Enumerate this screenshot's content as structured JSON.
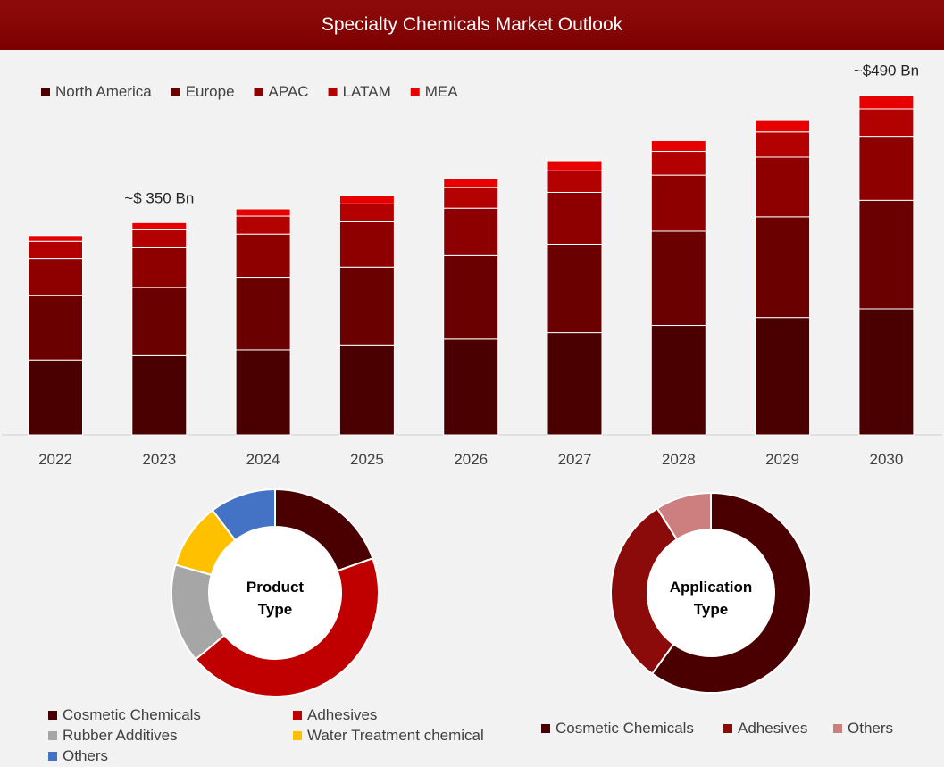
{
  "page": {
    "title": "Specialty Chemicals Market Outlook"
  },
  "chart_data": [
    {
      "type": "bar",
      "stacked": true,
      "categories": [
        "2022",
        "2023",
        "2024",
        "2025",
        "2026",
        "2027",
        "2028",
        "2029",
        "2030"
      ],
      "series": [
        {
          "name": "North America",
          "color": "#4a0000",
          "values": [
            104,
            110,
            118,
            125,
            133,
            142,
            152,
            163,
            175
          ]
        },
        {
          "name": "Europe",
          "color": "#6b0000",
          "values": [
            90,
            95,
            101,
            108,
            116,
            123,
            131,
            140,
            151
          ]
        },
        {
          "name": "APAC",
          "color": "#8e0000",
          "values": [
            51,
            55,
            60,
            63,
            66,
            72,
            78,
            83,
            89
          ]
        },
        {
          "name": "LATAM",
          "color": "#b30000",
          "values": [
            24,
            25,
            25,
            25,
            29,
            30,
            33,
            35,
            38
          ]
        },
        {
          "name": "MEA",
          "color": "#e60000",
          "values": [
            8,
            10,
            10,
            12,
            12,
            14,
            15,
            17,
            19
          ]
        }
      ],
      "annotations": [
        {
          "category": "2023",
          "text": "~$ 350 Bn"
        },
        {
          "category": "2030",
          "text": "~$490 Bn"
        }
      ],
      "ylim": [
        0,
        520
      ],
      "legend": "top-left",
      "grid": false
    },
    {
      "type": "pie",
      "donut": true,
      "center_label": [
        "Product",
        "Type"
      ],
      "labels": [
        "Cosmetic Chemicals",
        "Adhesives",
        "Rubber Additives",
        "Water Treatment chemical",
        "Others"
      ],
      "values": [
        19,
        43,
        15,
        10,
        10
      ],
      "colors": [
        "#4a0000",
        "#c00000",
        "#a6a6a6",
        "#ffc000",
        "#4472c4"
      ],
      "legend": "bottom"
    },
    {
      "type": "pie",
      "donut": true,
      "center_label": [
        "Application",
        "Type"
      ],
      "labels": [
        "Cosmetic Chemicals",
        "Adhesives",
        "Others"
      ],
      "values": [
        60,
        31,
        9
      ],
      "colors": [
        "#4a0000",
        "#8b0a0a",
        "#cd7e7e"
      ],
      "legend": "bottom"
    }
  ]
}
